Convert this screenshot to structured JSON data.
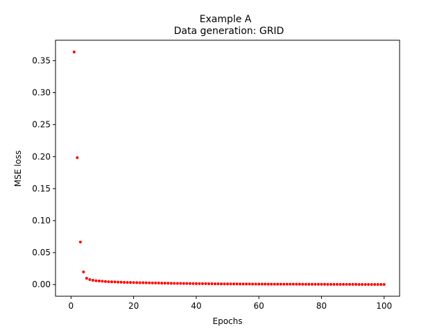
{
  "chart_data": {
    "type": "scatter",
    "title": "Example A",
    "subtitle": "Data generation: GRID",
    "xlabel": "Epochs",
    "ylabel": "MSE loss",
    "xlim": [
      -4.95,
      104.95
    ],
    "ylim": [
      -0.0182,
      0.3819
    ],
    "xticks": [
      0,
      20,
      40,
      60,
      80,
      100
    ],
    "xtick_labels": [
      "0",
      "20",
      "40",
      "60",
      "80",
      "100"
    ],
    "yticks": [
      0.0,
      0.05,
      0.1,
      0.15,
      0.2,
      0.25,
      0.3,
      0.35
    ],
    "ytick_labels": [
      "0.00",
      "0.05",
      "0.10",
      "0.15",
      "0.20",
      "0.25",
      "0.30",
      "0.35"
    ],
    "grid": false,
    "series": [
      {
        "color": "#ff0000",
        "x": [
          1,
          2,
          3,
          4,
          5,
          6,
          7,
          8,
          9,
          10,
          11,
          12,
          13,
          14,
          15,
          16,
          17,
          18,
          19,
          20,
          21,
          22,
          23,
          24,
          25,
          26,
          27,
          28,
          29,
          30,
          31,
          32,
          33,
          34,
          35,
          36,
          37,
          38,
          39,
          40,
          41,
          42,
          43,
          44,
          45,
          46,
          47,
          48,
          49,
          50,
          51,
          52,
          53,
          54,
          55,
          56,
          57,
          58,
          59,
          60,
          61,
          62,
          63,
          64,
          65,
          66,
          67,
          68,
          69,
          70,
          71,
          72,
          73,
          74,
          75,
          76,
          77,
          78,
          79,
          80,
          81,
          82,
          83,
          84,
          85,
          86,
          87,
          88,
          89,
          90,
          91,
          92,
          93,
          94,
          95,
          96,
          97,
          98,
          99,
          100
        ],
        "y": [
          0.3636,
          0.1984,
          0.0665,
          0.0197,
          0.0098,
          0.0078,
          0.0068,
          0.0061,
          0.0056,
          0.0052,
          0.0048,
          0.0045,
          0.0043,
          0.0041,
          0.0039,
          0.0037,
          0.0035,
          0.0034,
          0.0033,
          0.0032,
          0.0031,
          0.003,
          0.0029,
          0.0028,
          0.0027,
          0.0026,
          0.0025,
          0.0024,
          0.0023,
          0.0022,
          0.0021,
          0.002,
          0.0019,
          0.0018,
          0.0018,
          0.0017,
          0.0017,
          0.0016,
          0.0016,
          0.0015,
          0.0015,
          0.0014,
          0.0014,
          0.0013,
          0.0013,
          0.0012,
          0.0012,
          0.0011,
          0.0011,
          0.0011,
          0.001,
          0.001,
          0.001,
          0.0009,
          0.0009,
          0.0009,
          0.0009,
          0.0008,
          0.0008,
          0.0008,
          0.0008,
          0.0008,
          0.0007,
          0.0007,
          0.0007,
          0.0007,
          0.0007,
          0.0006,
          0.0006,
          0.0006,
          0.0006,
          0.0006,
          0.0006,
          0.0005,
          0.0005,
          0.0005,
          0.0005,
          0.0005,
          0.0005,
          0.0005,
          0.0005,
          0.0004,
          0.0004,
          0.0004,
          0.0004,
          0.0004,
          0.0004,
          0.0004,
          0.0004,
          0.0004,
          0.0004,
          0.0003,
          0.0003,
          0.0003,
          0.0003,
          0.0003,
          0.0003,
          0.0003,
          0.0003,
          0.0003
        ]
      }
    ]
  }
}
